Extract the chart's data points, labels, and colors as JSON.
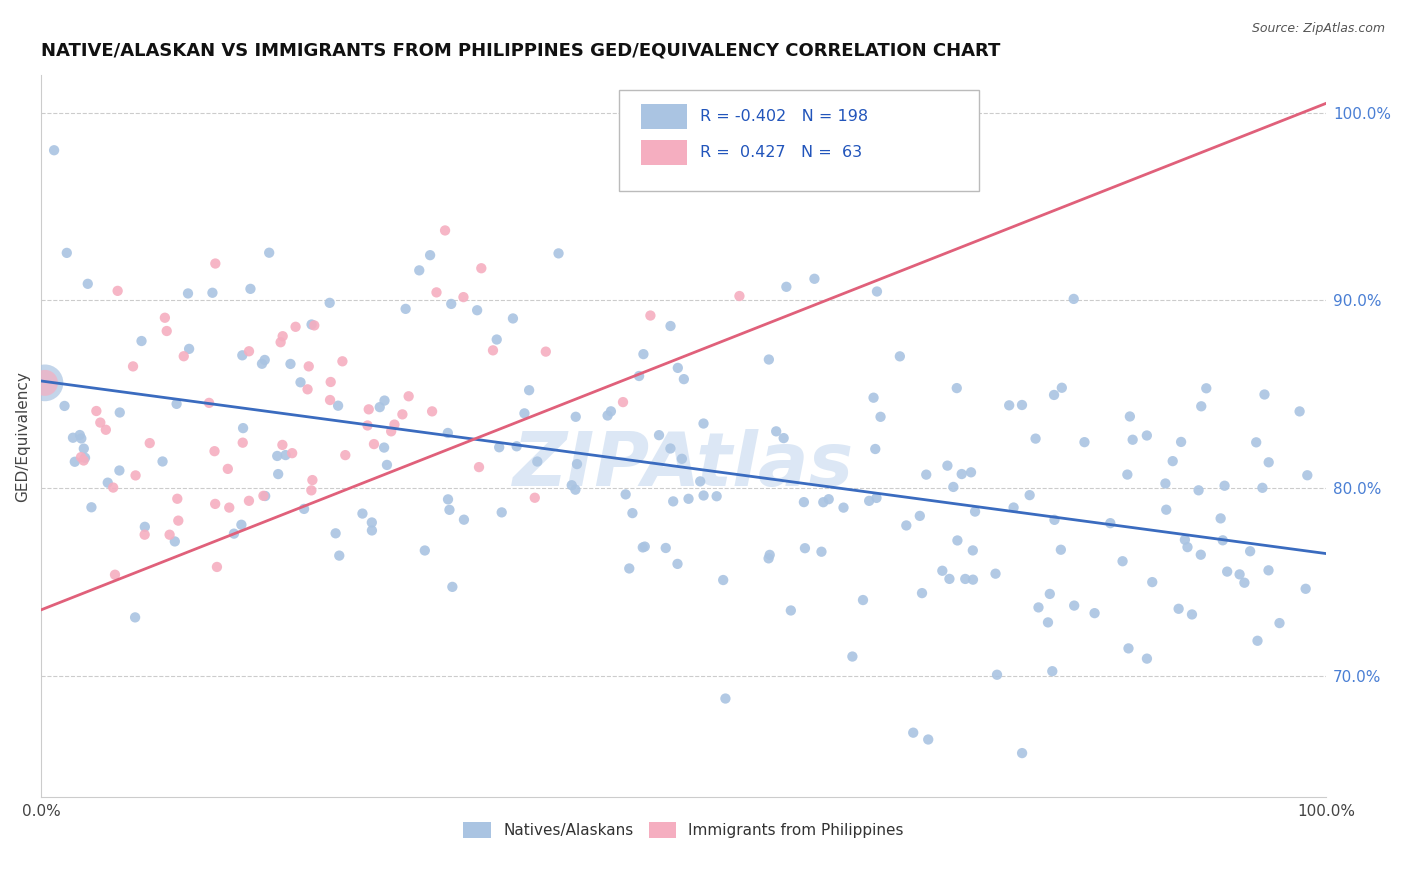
{
  "title": "NATIVE/ALASKAN VS IMMIGRANTS FROM PHILIPPINES GED/EQUIVALENCY CORRELATION CHART",
  "source": "Source: ZipAtlas.com",
  "ylabel": "GED/Equivalency",
  "watermark": "ZIPAtlas",
  "right_yticks": [
    0.7,
    0.8,
    0.9,
    1.0
  ],
  "right_yticklabels": [
    "70.0%",
    "80.0%",
    "90.0%",
    "100.0%"
  ],
  "series1": {
    "name": "Natives/Alaskans",
    "color": "#aac4e2",
    "R": -0.402,
    "N": 198,
    "line_color": "#3a6bbf"
  },
  "series2": {
    "name": "Immigrants from Philippines",
    "color": "#f5aec0",
    "R": 0.427,
    "N": 63,
    "line_color": "#e0607a"
  },
  "xlim": [
    0.0,
    1.0
  ],
  "ylim": [
    0.635,
    1.02
  ],
  "title_fontsize": 13,
  "source_fontsize": 9,
  "background_color": "#ffffff",
  "grid_color": "#cccccc",
  "trendline1_x0": 0.0,
  "trendline1_y0": 0.857,
  "trendline1_x1": 1.0,
  "trendline1_y1": 0.765,
  "trendline2_x0": 0.0,
  "trendline2_y0": 0.735,
  "trendline2_x1": 1.0,
  "trendline2_y1": 1.005
}
